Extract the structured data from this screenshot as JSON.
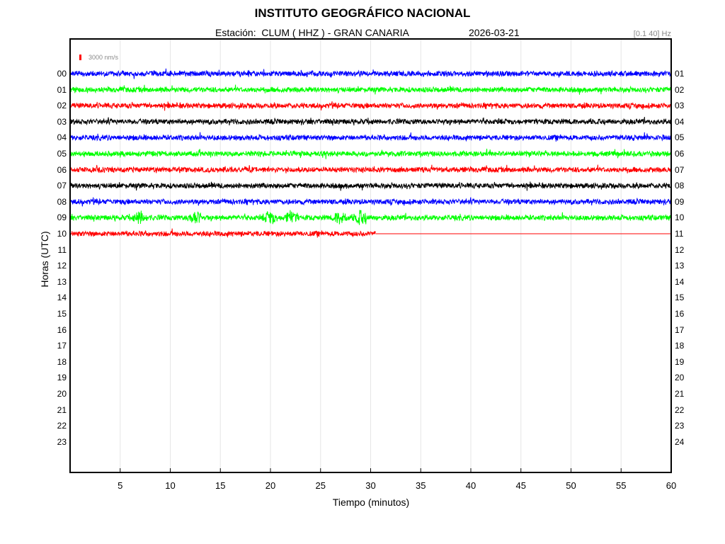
{
  "header": {
    "title": "INSTITUTO GEOGRÁFICO NACIONAL",
    "station": "Estación:  CLUM ( HHZ ) - GRAN CANARIA",
    "date": "2026-03-21",
    "filter": "[0.1 40] Hz"
  },
  "scale": {
    "label": "3000 nm/s",
    "color": "#ff0000"
  },
  "chart_data": {
    "type": "line",
    "xlabel": "Tiempo (minutos)",
    "ylabel": "Horas (UTC)",
    "xlim": [
      0,
      60
    ],
    "x_ticks": [
      "5",
      "10",
      "15",
      "20",
      "25",
      "30",
      "35",
      "40",
      "45",
      "50",
      "55",
      "60"
    ],
    "left_ticks": [
      "00",
      "01",
      "02",
      "03",
      "04",
      "05",
      "06",
      "07",
      "08",
      "09",
      "10",
      "11",
      "12",
      "13",
      "14",
      "15",
      "16",
      "17",
      "18",
      "19",
      "20",
      "21",
      "22",
      "23"
    ],
    "right_ticks": [
      "01",
      "02",
      "03",
      "04",
      "05",
      "06",
      "07",
      "08",
      "09",
      "10",
      "11",
      "12",
      "13",
      "14",
      "15",
      "16",
      "17",
      "18",
      "19",
      "20",
      "21",
      "22",
      "23",
      "24"
    ],
    "grid": "vertical",
    "color_cycle": [
      "#0000ff",
      "#00ff00",
      "#ff0000",
      "#000000"
    ],
    "series": [
      {
        "hour": "00",
        "color": "#0000ff",
        "end_minute": 60
      },
      {
        "hour": "01",
        "color": "#00ff00",
        "end_minute": 60
      },
      {
        "hour": "02",
        "color": "#ff0000",
        "end_minute": 60
      },
      {
        "hour": "03",
        "color": "#000000",
        "end_minute": 60
      },
      {
        "hour": "04",
        "color": "#0000ff",
        "end_minute": 60
      },
      {
        "hour": "05",
        "color": "#00ff00",
        "end_minute": 60
      },
      {
        "hour": "06",
        "color": "#ff0000",
        "end_minute": 60
      },
      {
        "hour": "07",
        "color": "#000000",
        "end_minute": 60
      },
      {
        "hour": "08",
        "color": "#0000ff",
        "end_minute": 60
      },
      {
        "hour": "09",
        "color": "#00ff00",
        "end_minute": 60,
        "events_minutes": [
          7,
          12.5,
          20,
          22,
          27,
          29
        ]
      },
      {
        "hour": "10",
        "color": "#ff0000",
        "end_minute": 30.5,
        "flat_until_minute": 60
      }
    ]
  }
}
